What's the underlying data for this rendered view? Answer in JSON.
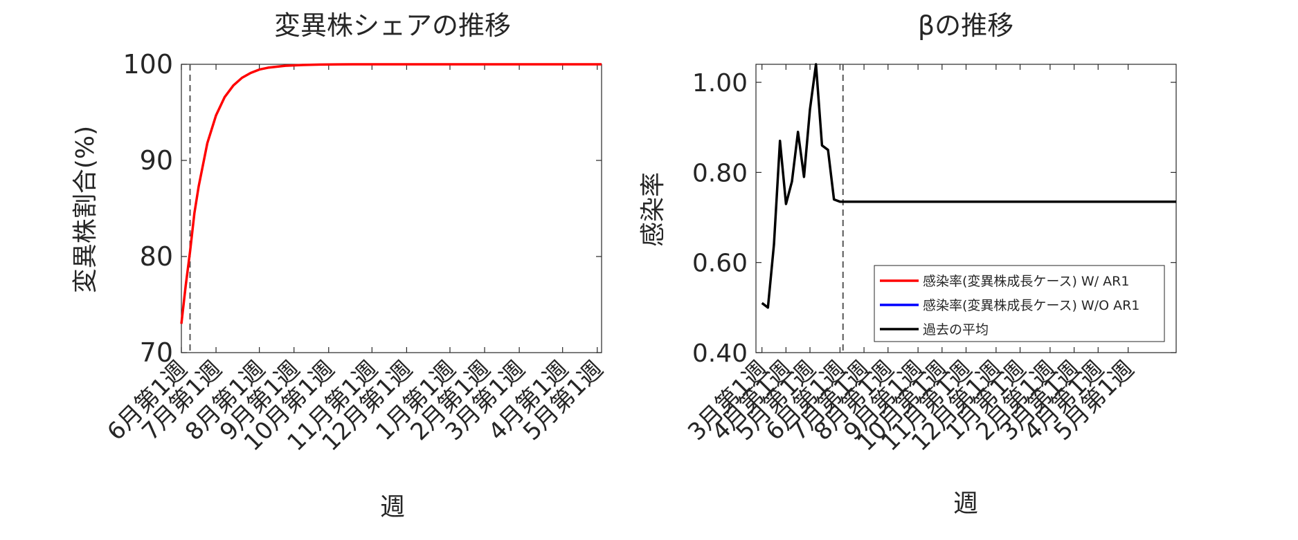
{
  "chart_data": [
    {
      "type": "line",
      "title": "変異株シェアの推移",
      "xlabel": "週",
      "ylabel": "変異株割合(%)",
      "ylim": [
        70,
        100
      ],
      "yticks": [
        "70",
        "80",
        "90",
        "100"
      ],
      "ytick_values": [
        70,
        80,
        90,
        100
      ],
      "xlim": [
        0,
        48.5
      ],
      "xticks": [
        "6月第1週",
        "7月第1週",
        "8月第1週",
        "9月第1週",
        "10月第1週",
        "11月第1週",
        "12月第1週",
        "1月第1週",
        "2月第1週",
        "3月第1週",
        "4月第1週",
        "5月第1週"
      ],
      "xtick_positions": [
        0,
        4,
        9,
        13,
        17,
        22,
        26,
        31,
        35,
        39,
        44,
        48
      ],
      "vline_x": 1,
      "series": [
        {
          "name": "変異株シェア",
          "color": "#ff0000",
          "x": [
            0,
            0.5,
            1,
            1.5,
            2,
            3,
            4,
            5,
            6,
            7,
            8,
            9,
            10,
            12,
            14,
            16,
            18,
            20,
            24,
            30,
            36,
            42,
            48.5
          ],
          "values": [
            73.0,
            77.0,
            80.5,
            84.5,
            87.3,
            91.8,
            94.7,
            96.6,
            97.8,
            98.6,
            99.1,
            99.45,
            99.65,
            99.85,
            99.93,
            99.97,
            99.99,
            100,
            100,
            100,
            100,
            100,
            100
          ]
        }
      ]
    },
    {
      "type": "line",
      "title": "βの推移",
      "xlabel": "週",
      "ylabel": "感染率",
      "ylim": [
        0.4,
        1.04
      ],
      "yticks": [
        "0.40",
        "0.60",
        "0.80",
        "1.00"
      ],
      "ytick_values": [
        0.4,
        0.6,
        0.8,
        1.0
      ],
      "xlim": [
        0,
        70
      ],
      "xticks": [
        "3月第1週",
        "4月第1週",
        "5月第1週",
        "6月第1週",
        "7月第1週",
        "8月第1週",
        "9月第1週",
        "10月第1週",
        "11月第1週",
        "12月第1週",
        "1月第1週",
        "2月第1週",
        "3月第1週",
        "4月第1週",
        "5月第1週"
      ],
      "xtick_positions": [
        1,
        5,
        9,
        14,
        18,
        22,
        27,
        31,
        35,
        40,
        44,
        49,
        53,
        57,
        62
      ],
      "vline_x": 14.5,
      "legend": [
        "感染率(変異株成長ケース) W/ AR1",
        "感染率(変異株成長ケース) W/O AR1",
        "過去の平均"
      ],
      "legend_colors": [
        "#ff0000",
        "#0000ff",
        "#000000"
      ],
      "legend_position": "lower-right",
      "series": [
        {
          "name": "過去の平均",
          "color": "#000000",
          "x": [
            1,
            2,
            3,
            4,
            5,
            6,
            7,
            8,
            9,
            10,
            11,
            12,
            13,
            14,
            14.5,
            70
          ],
          "values": [
            0.51,
            0.5,
            0.64,
            0.87,
            0.73,
            0.78,
            0.89,
            0.79,
            0.94,
            1.04,
            0.86,
            0.85,
            0.74,
            0.735,
            0.735,
            0.735
          ]
        }
      ]
    }
  ]
}
